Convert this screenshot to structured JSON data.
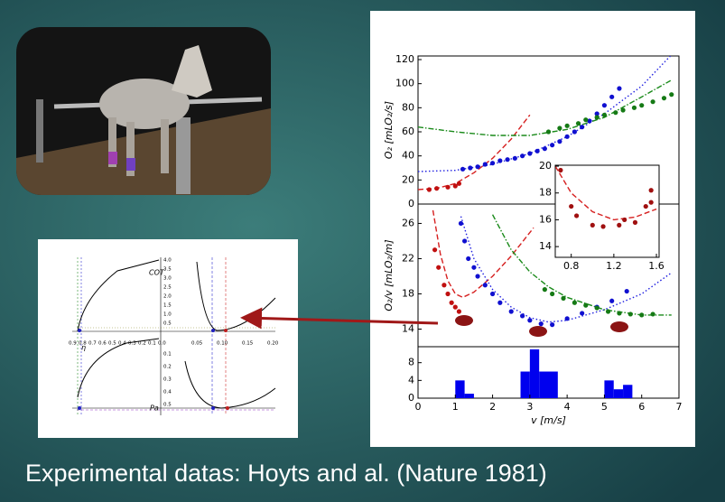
{
  "slide": {
    "caption": "Experimental datas: Hoyts and al. (Nature 1981)"
  },
  "left_figure": {
    "top_left_xticks": [
      "0.9",
      "0.8",
      "0.7",
      "0.6",
      "0.5",
      "0.4",
      "0.3",
      "0.2",
      "0.1",
      "0.0"
    ],
    "top_right_xticks": [
      "0.05",
      "0.10",
      "0.15",
      "0.20"
    ],
    "top_yticks": [
      "4.0",
      "3.5",
      "3.0",
      "2.5",
      "2.0",
      "1.5",
      "1.0",
      "0.5"
    ],
    "bottom_yticks": [
      "0.1",
      "0.2",
      "0.3",
      "0.4",
      "0.5"
    ],
    "labels": {
      "cot": "COT",
      "eta": "η",
      "pa": "Pa"
    }
  },
  "chart_data": [
    {
      "type": "line",
      "ylabel": "O₂ [mLO₂/s]",
      "xlim": [
        0,
        7
      ],
      "ylim": [
        0,
        123
      ],
      "yticks": [
        0,
        20,
        40,
        60,
        80,
        100,
        120
      ],
      "series": [
        {
          "type": "line",
          "color": "#d62020",
          "style": "dashed",
          "x": [
            0,
            0.5,
            1,
            1.5,
            2,
            2.5,
            3
          ],
          "values": [
            12,
            13,
            17,
            26,
            38,
            54,
            74
          ]
        },
        {
          "type": "line",
          "color": "#2020e0",
          "style": "dotted",
          "x": [
            0,
            1,
            2,
            3,
            4,
            5,
            6,
            6.8
          ],
          "values": [
            27,
            28,
            33,
            42,
            56,
            75,
            98,
            124
          ]
        },
        {
          "type": "line",
          "color": "#1a8a1a",
          "style": "dashdot",
          "x": [
            0,
            1,
            2,
            3,
            4,
            5,
            6,
            6.8
          ],
          "values": [
            64,
            60,
            57,
            57,
            62,
            72,
            89,
            103
          ]
        },
        {
          "type": "scatter",
          "color": "#c01010",
          "x": [
            0.3,
            0.5,
            0.8,
            1.0,
            1.1
          ],
          "values": [
            12,
            13,
            14,
            15,
            17
          ]
        },
        {
          "type": "scatter",
          "color": "#1010d0",
          "x": [
            1.2,
            1.4,
            1.6,
            1.8,
            2.0,
            2.2,
            2.4,
            2.6,
            2.8,
            3.0,
            3.2,
            3.4,
            3.6,
            3.8,
            4.0,
            4.2,
            4.4,
            4.6,
            4.8,
            5.0,
            5.2,
            5.4
          ],
          "values": [
            29,
            30,
            31,
            33,
            34,
            36,
            37,
            38,
            40,
            42,
            44,
            46,
            49,
            52,
            56,
            60,
            64,
            69,
            75,
            82,
            89,
            96
          ]
        },
        {
          "type": "scatter",
          "color": "#157a15",
          "x": [
            3.5,
            3.8,
            4.0,
            4.3,
            4.5,
            4.8,
            5.0,
            5.3,
            5.5,
            5.8,
            6.0,
            6.3,
            6.6,
            6.8
          ],
          "values": [
            60,
            63,
            65,
            67,
            70,
            72,
            74,
            76,
            78,
            80,
            82,
            85,
            88,
            91
          ]
        }
      ]
    },
    {
      "type": "line",
      "ylabel": "O₂/v [mLO₂/m]",
      "xlim": [
        0,
        7
      ],
      "ylim": [
        12,
        28.2
      ],
      "yticks": [
        14,
        18,
        22,
        26
      ],
      "series": [
        {
          "type": "line",
          "color": "#d62020",
          "style": "dashed",
          "x": [
            0.4,
            0.6,
            0.8,
            1.0,
            1.2,
            1.5,
            2,
            2.5,
            3.1
          ],
          "values": [
            27.5,
            22.5,
            19.5,
            18,
            17.6,
            18.2,
            20,
            22.3,
            25.5
          ]
        },
        {
          "type": "line",
          "color": "#2020e0",
          "style": "dotted",
          "x": [
            1.15,
            1.5,
            2,
            2.5,
            3,
            3.5,
            4,
            5,
            6,
            6.8
          ],
          "values": [
            26.8,
            22,
            18.5,
            16.5,
            15.3,
            14.8,
            15,
            16.2,
            18,
            20.4
          ]
        },
        {
          "type": "line",
          "color": "#1a8a1a",
          "style": "dashdot",
          "x": [
            2,
            2.5,
            3,
            3.5,
            4,
            5,
            6,
            6.8
          ],
          "values": [
            27,
            23,
            20.5,
            18.8,
            17.6,
            16.2,
            15.6,
            15.6
          ]
        },
        {
          "type": "scatter",
          "color": "#c01010",
          "x": [
            0.45,
            0.55,
            0.7,
            0.8,
            0.9,
            1.0,
            1.1
          ],
          "values": [
            23,
            21,
            19,
            18,
            17,
            16.5,
            16
          ]
        },
        {
          "type": "scatter",
          "color": "#1010d0",
          "x": [
            1.15,
            1.25,
            1.35,
            1.5,
            1.6,
            1.8,
            2.0,
            2.2,
            2.5,
            2.8,
            3.0,
            3.3,
            3.6,
            4.0,
            4.4,
            4.8,
            5.2,
            5.6
          ],
          "values": [
            26,
            24,
            22,
            21,
            20,
            19,
            18,
            17,
            16,
            15.5,
            15,
            14.6,
            14.5,
            15.2,
            15.8,
            16.5,
            17.2,
            18.3
          ]
        },
        {
          "type": "scatter",
          "color": "#157a15",
          "x": [
            3.4,
            3.6,
            3.9,
            4.2,
            4.5,
            4.8,
            5.1,
            5.4,
            5.7,
            6.0,
            6.3
          ],
          "values": [
            18.5,
            18,
            17.5,
            17,
            16.7,
            16.4,
            16,
            15.8,
            15.7,
            15.6,
            15.7
          ]
        }
      ]
    },
    {
      "type": "histogram",
      "color": "#0000ee",
      "xlabel": "v [m/s]",
      "xlim": [
        0,
        7
      ],
      "xticks": [
        0,
        1,
        2,
        3,
        4,
        5,
        6,
        7
      ],
      "ylim": [
        0,
        11.6
      ],
      "yticks": [
        0,
        4,
        8
      ],
      "bins": [
        1.0,
        1.25,
        1.5,
        1.75,
        2.0,
        2.25,
        2.5,
        2.75,
        3.0,
        3.25,
        3.5,
        3.75,
        4.0,
        4.25,
        4.5,
        4.75,
        5.0,
        5.25,
        5.5,
        5.75
      ],
      "values": [
        4,
        1,
        0,
        0,
        0,
        0,
        0,
        6,
        11,
        6,
        6,
        0,
        0,
        0,
        0,
        0,
        4,
        2,
        3
      ]
    },
    {
      "type": "line",
      "xlim": [
        0.65,
        1.625
      ],
      "xticks": [
        0.8,
        1.2,
        1.6
      ],
      "ylim": [
        13.2,
        20.07
      ],
      "yticks": [
        14,
        16,
        18,
        20
      ],
      "series": [
        {
          "type": "line",
          "color": "#d62020",
          "style": "dashed",
          "x": [
            0.65,
            0.8,
            1.0,
            1.2,
            1.4,
            1.6
          ],
          "values": [
            20,
            18,
            16.6,
            16,
            16.2,
            16.8
          ]
        },
        {
          "type": "scatter",
          "color": "#a01010",
          "x": [
            0.7,
            0.8,
            0.85,
            1.0,
            1.1,
            1.25,
            1.3,
            1.4,
            1.5,
            1.55,
            1.55
          ],
          "values": [
            19.7,
            17,
            16.3,
            15.6,
            15.5,
            15.6,
            16.0,
            15.8,
            17,
            17.3,
            18.2
          ]
        }
      ]
    }
  ]
}
